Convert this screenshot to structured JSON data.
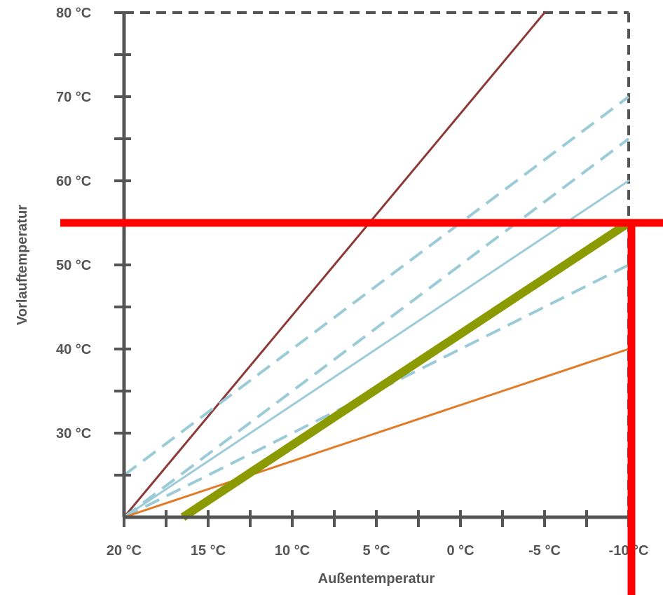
{
  "chart_data": {
    "type": "line",
    "xlabel": "Außentemperatur",
    "ylabel": "Vorlauftemperatur",
    "xlim": [
      20,
      -10
    ],
    "ylim": [
      20,
      80
    ],
    "x_ticks": [
      20,
      15,
      10,
      5,
      0,
      -5,
      -10
    ],
    "x_tick_labels": [
      "20 °C",
      "15 °C",
      "10 °C",
      "5 °C",
      "0 °C",
      "-5 °C",
      "-10 °C"
    ],
    "y_ticks": [
      30,
      40,
      50,
      60,
      70,
      80
    ],
    "y_tick_labels": [
      "30 °C",
      "40 °C",
      "50 °C",
      "60 °C",
      "70 °C",
      "80 °C"
    ],
    "grid": false,
    "legend": "none",
    "series": [
      {
        "color": "#8b3a3a",
        "style": "solid",
        "width": 3,
        "x": [
          20,
          -5
        ],
        "y": [
          20,
          80
        ]
      },
      {
        "color": "#9ccbd8",
        "style": "dashed",
        "width": 4,
        "x": [
          20,
          -10
        ],
        "y": [
          25,
          70
        ]
      },
      {
        "color": "#9ccbd8",
        "style": "dashed",
        "width": 4,
        "x": [
          20,
          -10
        ],
        "y": [
          20,
          65
        ]
      },
      {
        "color": "#9ccbd8",
        "style": "solid",
        "width": 3,
        "x": [
          20,
          -10
        ],
        "y": [
          20,
          60
        ]
      },
      {
        "color": "#9ccbd8",
        "style": "dashed",
        "width": 4,
        "x": [
          20,
          -10
        ],
        "y": [
          20,
          50
        ]
      },
      {
        "color": "#e07b2a",
        "style": "solid",
        "width": 3,
        "x": [
          20,
          -10
        ],
        "y": [
          20,
          40
        ]
      },
      {
        "color": "#8a9a00",
        "style": "solid",
        "width": 12,
        "x": [
          16.5,
          -10
        ],
        "y": [
          20,
          55
        ]
      }
    ],
    "annotations": {
      "box_color": "#555555",
      "box_x": -10,
      "box_y": 80,
      "marker_color": "#ff0000",
      "marker_hline_y": 55,
      "marker_vline_x": -10
    }
  }
}
